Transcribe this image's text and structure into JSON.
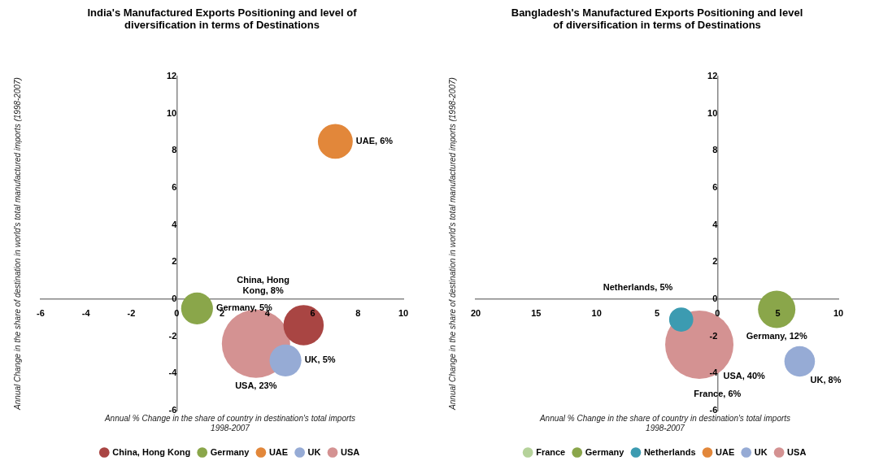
{
  "chart_data": [
    {
      "type": "bubble",
      "title": "India's Manufactured Exports Positioning and level of diversification in terms of Destinations",
      "xlabel": "Annual % Change in the share of country in destination's total imports 1998-2007",
      "ylabel": "Annual Change in the share of destination in world's total manufactured imports (1998-2007)",
      "xlim": [
        -6,
        10
      ],
      "xticks": [
        -6,
        -4,
        -2,
        0,
        2,
        4,
        6,
        8,
        10
      ],
      "ylim": [
        -6,
        12
      ],
      "yticks": [
        -6,
        -4,
        -2,
        0,
        2,
        4,
        6,
        8,
        10,
        12
      ],
      "legend": "bottom",
      "marker": "circle",
      "series": [
        {
          "name": "China, Hong Kong",
          "color": "#a94543",
          "x": [
            5.6
          ],
          "values": [
            -1.4
          ],
          "sizes": [
            8
          ],
          "value_labels": [
            "China, Hong Kong, 8%"
          ]
        },
        {
          "name": "Germany",
          "color": "#8aa64a",
          "x": [
            0.9
          ],
          "values": [
            -0.5
          ],
          "sizes": [
            5
          ],
          "value_labels": [
            "Germany, 5%"
          ]
        },
        {
          "name": "UAE",
          "color": "#e2873a",
          "x": [
            7
          ],
          "values": [
            8.5
          ],
          "sizes": [
            6
          ],
          "value_labels": [
            "UAE, 6%"
          ]
        },
        {
          "name": "UK",
          "color": "#96abd5",
          "x": [
            4.8
          ],
          "values": [
            -3.3
          ],
          "sizes": [
            5
          ],
          "value_labels": [
            "UK, 5%"
          ]
        },
        {
          "name": "USA",
          "color": "#d49292",
          "x": [
            3.5
          ],
          "values": [
            -2.4
          ],
          "sizes": [
            23
          ],
          "value_labels": [
            "USA, 23%"
          ]
        }
      ]
    },
    {
      "type": "bubble",
      "title": "Bangladesh's Manufactured Exports Positioning and level of diversification in terms of Destinations",
      "xlabel": "Annual % Change in the share of country in destination's total imports 1998-2007",
      "ylabel": "Annual Change in the share of destination in world's total manufactured imports (1998-2007)",
      "annotations": [
        "France, 6%"
      ],
      "xlim": [
        -20,
        10
      ],
      "xticks": [
        {
          "value": -20,
          "label": "20"
        },
        {
          "value": -15,
          "label": "15"
        },
        {
          "value": -10,
          "label": "10"
        },
        {
          "value": -5,
          "label": "5"
        },
        0,
        5,
        10
      ],
      "ylim": [
        -6,
        12
      ],
      "yticks": [
        -6,
        -4,
        -2,
        0,
        2,
        4,
        6,
        8,
        10,
        12
      ],
      "legend": "bottom",
      "marker": "circle",
      "series": [
        {
          "name": "France",
          "color": "#b5d29a",
          "x": [
            null
          ],
          "values": [
            null
          ],
          "sizes": [
            null
          ]
        },
        {
          "name": "Germany",
          "color": "#8aa64a",
          "x": [
            4.9
          ],
          "values": [
            -0.55
          ],
          "sizes": [
            12
          ],
          "value_labels": [
            "Germany, 12%"
          ]
        },
        {
          "name": "Netherlands",
          "color": "#3c9bb1",
          "x": [
            -3
          ],
          "values": [
            -1.1
          ],
          "sizes": [
            5
          ],
          "value_labels": [
            "Netherlands, 5%"
          ]
        },
        {
          "name": "UAE",
          "color": "#e2873a",
          "x": [
            null
          ],
          "values": [
            null
          ],
          "sizes": [
            null
          ]
        },
        {
          "name": "UK",
          "color": "#96abd5",
          "x": [
            6.8
          ],
          "values": [
            -3.35
          ],
          "sizes": [
            8
          ],
          "value_labels": [
            "UK, 8%"
          ]
        },
        {
          "name": "USA",
          "color": "#d49292",
          "x": [
            -1.5
          ],
          "values": [
            -2.45
          ],
          "sizes": [
            40
          ],
          "value_labels": [
            "USA, 40%"
          ]
        }
      ]
    }
  ]
}
